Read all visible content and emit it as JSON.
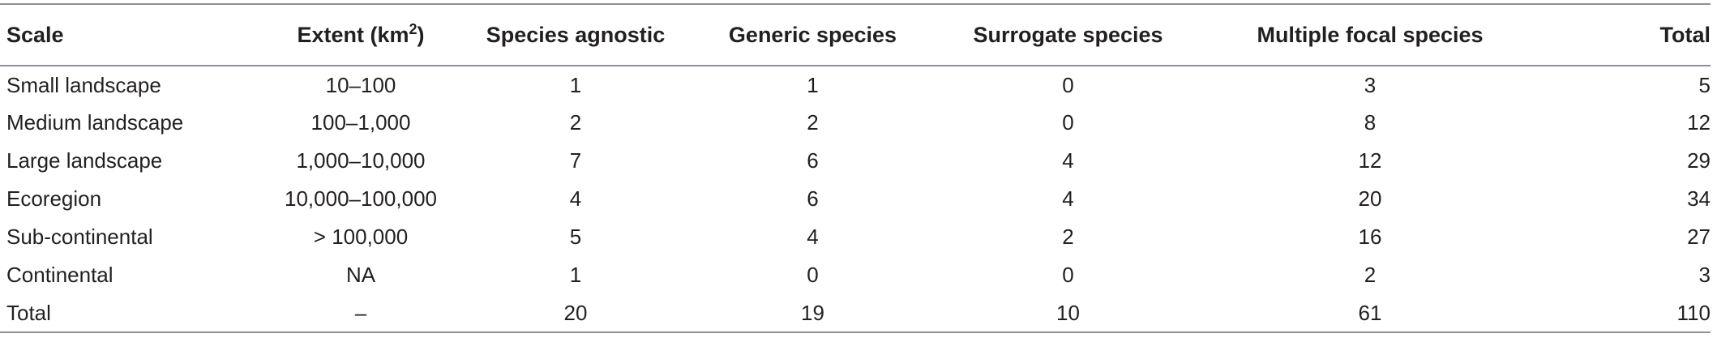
{
  "table": {
    "headers": {
      "scale": "Scale",
      "extent_prefix": "Extent (km",
      "extent_sup": "2",
      "extent_suffix": ")",
      "species_agnostic": "Species agnostic",
      "generic_species": "Generic species",
      "surrogate_species": "Surrogate species",
      "multiple_focal_species": "Multiple focal species",
      "total": "Total"
    },
    "rows": [
      {
        "scale": "Small landscape",
        "extent": "10–100",
        "species_agnostic": "1",
        "generic_species": "1",
        "surrogate_species": "0",
        "multiple_focal_species": "3",
        "total": "5"
      },
      {
        "scale": "Medium landscape",
        "extent": "100–1,000",
        "species_agnostic": "2",
        "generic_species": "2",
        "surrogate_species": "0",
        "multiple_focal_species": "8",
        "total": "12"
      },
      {
        "scale": "Large landscape",
        "extent": "1,000–10,000",
        "species_agnostic": "7",
        "generic_species": "6",
        "surrogate_species": "4",
        "multiple_focal_species": "12",
        "total": "29"
      },
      {
        "scale": "Ecoregion",
        "extent": "10,000–100,000",
        "species_agnostic": "4",
        "generic_species": "6",
        "surrogate_species": "4",
        "multiple_focal_species": "20",
        "total": "34"
      },
      {
        "scale": "Sub-continental",
        "extent": "> 100,000",
        "species_agnostic": "5",
        "generic_species": "4",
        "surrogate_species": "2",
        "multiple_focal_species": "16",
        "total": "27"
      },
      {
        "scale": "Continental",
        "extent": "NA",
        "species_agnostic": "1",
        "generic_species": "0",
        "surrogate_species": "0",
        "multiple_focal_species": "2",
        "total": "3"
      },
      {
        "scale": "Total",
        "extent": "–",
        "species_agnostic": "20",
        "generic_species": "19",
        "surrogate_species": "10",
        "multiple_focal_species": "61",
        "total": "110"
      }
    ]
  },
  "colors": {
    "text": "#231f20",
    "rule": "#8e9095"
  }
}
